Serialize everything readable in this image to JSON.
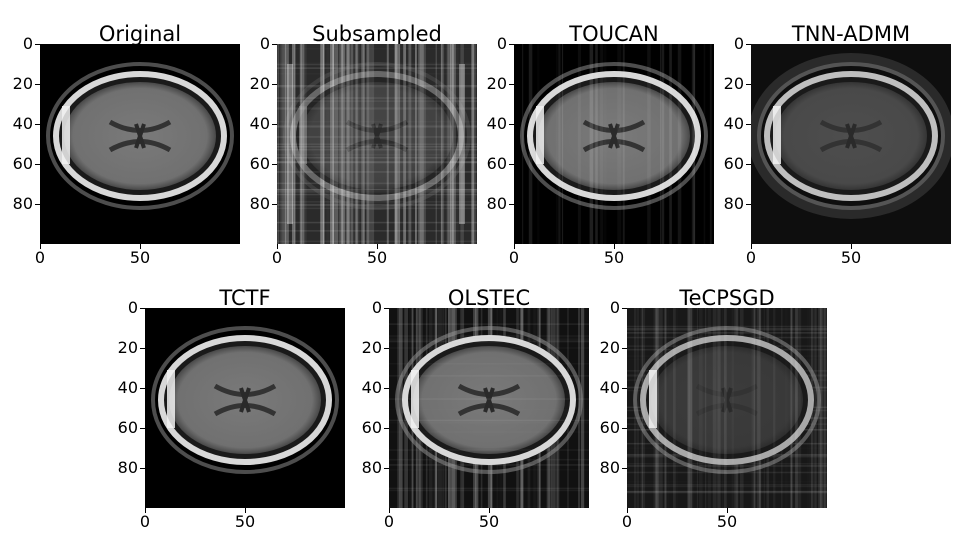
{
  "figure": {
    "panels": [
      {
        "title": "Original",
        "style": "clean"
      },
      {
        "title": "Subsampled",
        "style": "subsampled"
      },
      {
        "title": "TOUCAN",
        "style": "streaky"
      },
      {
        "title": "TNN-ADMM",
        "style": "dark"
      },
      {
        "title": "TCTF",
        "style": "clean"
      },
      {
        "title": "OLSTEC",
        "style": "noisy"
      },
      {
        "title": "TeCPSGD",
        "style": "grid"
      }
    ],
    "y_ticks": [
      "0",
      "20",
      "40",
      "60",
      "80"
    ],
    "x_ticks": [
      "0",
      "50"
    ]
  }
}
